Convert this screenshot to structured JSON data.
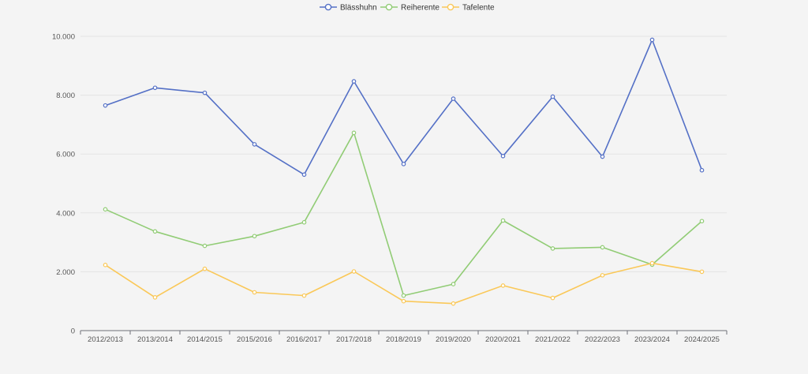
{
  "chart_data": {
    "type": "line",
    "categories": [
      "2012/2013",
      "2013/2014",
      "2014/2015",
      "2015/2016",
      "2016/2017",
      "2017/2018",
      "2018/2019",
      "2019/2020",
      "2020/2021",
      "2021/2022",
      "2022/2023",
      "2023/2024",
      "2024/2025"
    ],
    "y_ticks": [
      "0",
      "2.000",
      "4.000",
      "6.000",
      "8.000",
      "10.000"
    ],
    "ylim": [
      0,
      10000
    ],
    "grid": true,
    "legend_position": "top-center",
    "series": [
      {
        "name": "Blässhuhn",
        "color": "#5470c6",
        "values": [
          7650,
          8250,
          8080,
          6330,
          5300,
          8470,
          5660,
          7880,
          5930,
          7950,
          5910,
          9880,
          5450
        ]
      },
      {
        "name": "Reiherente",
        "color": "#91cc75",
        "values": [
          4120,
          3370,
          2880,
          3210,
          3680,
          6720,
          1190,
          1580,
          3740,
          2790,
          2830,
          2240,
          3720
        ]
      },
      {
        "name": "Tafelente",
        "color": "#fac858",
        "values": [
          2230,
          1130,
          2100,
          1300,
          1190,
          2010,
          1000,
          920,
          1530,
          1110,
          1880,
          2290,
          2000
        ]
      }
    ]
  }
}
